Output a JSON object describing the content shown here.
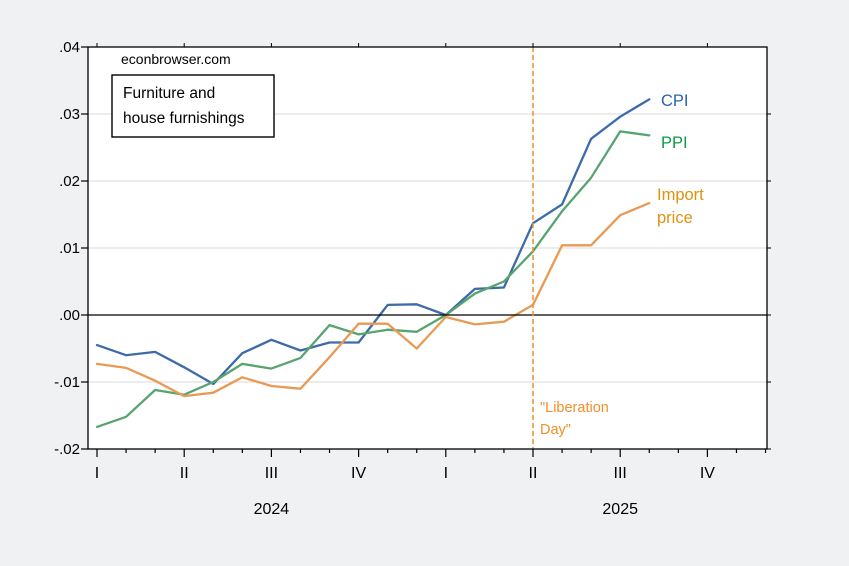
{
  "watermark": "econbrowser.com",
  "chart_box": {
    "line1": "Furniture and",
    "line2": "house furnishings"
  },
  "series_end_labels": {
    "cpi": "CPI",
    "ppi": "PPI",
    "import_line1": "Import",
    "import_line2": "price"
  },
  "annotation": {
    "line1": "\"Liberation",
    "line2": "Day\""
  },
  "colors": {
    "background": "#f0f1f2",
    "plot_background": "#ffffff",
    "frame": "#000000",
    "gridline": "#d8d8d8",
    "zero_line": "#000000",
    "cpi_line": "#3d6ba8",
    "cpi_label": "#2a63b0",
    "ppi_line": "#58a470",
    "ppi_label": "#0c9b47",
    "import_line": "#e89a55",
    "import_label": "#de920f",
    "vline": "#f28f28"
  },
  "chart_data": {
    "type": "line",
    "title": "Furniture and house furnishings",
    "source_text": "econbrowser.com",
    "x_unit": "month",
    "x": [
      "2024-01",
      "2024-02",
      "2024-03",
      "2024-04",
      "2024-05",
      "2024-06",
      "2024-07",
      "2024-08",
      "2024-09",
      "2024-10",
      "2024-11",
      "2024-12",
      "2025-01",
      "2025-02",
      "2025-03",
      "2025-04",
      "2025-05",
      "2025-06",
      "2025-07",
      "2025-08"
    ],
    "series": [
      {
        "name": "CPI",
        "values": [
          -0.0045,
          -0.006,
          -0.0055,
          -0.0078,
          -0.0103,
          -0.0057,
          -0.0037,
          -0.0053,
          -0.0041,
          -0.0041,
          0.0015,
          0.0016,
          0.0,
          0.0039,
          0.0041,
          0.0137,
          0.0165,
          0.0263,
          0.0296,
          0.0322
        ]
      },
      {
        "name": "PPI",
        "values": [
          -0.0167,
          -0.0152,
          -0.0112,
          -0.0119,
          -0.01,
          -0.0073,
          -0.008,
          -0.0064,
          -0.0015,
          -0.0029,
          -0.0022,
          -0.0025,
          0.0,
          0.0032,
          0.005,
          0.0095,
          0.0155,
          0.0205,
          0.0274,
          0.0268
        ]
      },
      {
        "name": "Import price",
        "values": [
          -0.0073,
          -0.0079,
          -0.0098,
          -0.0121,
          -0.0116,
          -0.0093,
          -0.0106,
          -0.011,
          -0.0063,
          -0.0013,
          -0.0013,
          -0.005,
          -0.0003,
          -0.0014,
          -0.001,
          0.0015,
          0.0104,
          0.0104,
          0.0149,
          0.0167
        ]
      }
    ],
    "ylim": [
      -0.02,
      0.04
    ],
    "ytick_step": 0.01,
    "ytick_labels": [
      ".04",
      ".03",
      ".02",
      ".01",
      ".00",
      "-.01",
      "-.02"
    ],
    "x_axis_months_shown": 24,
    "quarter_labels": [
      "I",
      "II",
      "III",
      "IV",
      "I",
      "II",
      "III",
      "IV"
    ],
    "year_labels": [
      "2024",
      "2025"
    ],
    "grid": "horizontal-only",
    "legend_position": "right-of-line-ends",
    "vline_x": "2025-04",
    "vline_annotation": "\"Liberation Day\""
  }
}
